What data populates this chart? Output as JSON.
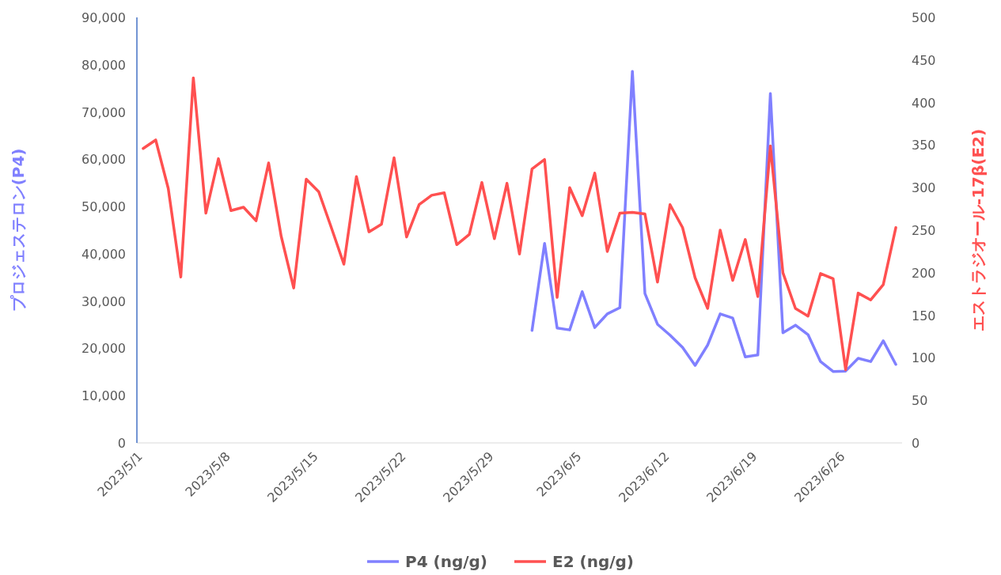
{
  "chart_data": {
    "type": "line",
    "ylabel": "プロジェステロン(P4)",
    "y2label": "エストラジオール-17β(E2)",
    "legend": "bottom",
    "x": [
      "2023-05-01",
      "2023-05-02",
      "2023-05-03",
      "2023-05-04",
      "2023-05-05",
      "2023-05-06",
      "2023-05-07",
      "2023-05-08",
      "2023-05-09",
      "2023-05-10",
      "2023-05-11",
      "2023-05-12",
      "2023-05-13",
      "2023-05-14",
      "2023-05-15",
      "2023-05-16",
      "2023-05-17",
      "2023-05-18",
      "2023-05-19",
      "2023-05-20",
      "2023-05-21",
      "2023-05-22",
      "2023-05-23",
      "2023-05-24",
      "2023-05-25",
      "2023-05-26",
      "2023-05-27",
      "2023-05-28",
      "2023-05-29",
      "2023-05-30",
      "2023-05-31",
      "2023-06-01",
      "2023-06-02",
      "2023-06-03",
      "2023-06-04",
      "2023-06-05",
      "2023-06-06",
      "2023-06-07",
      "2023-06-08",
      "2023-06-09",
      "2023-06-10",
      "2023-06-11",
      "2023-06-12",
      "2023-06-13",
      "2023-06-14",
      "2023-06-15",
      "2023-06-16",
      "2023-06-17",
      "2023-06-18",
      "2023-06-19",
      "2023-06-20",
      "2023-06-21",
      "2023-06-22",
      "2023-06-23",
      "2023-06-24",
      "2023-06-25",
      "2023-06-26",
      "2023-06-27",
      "2023-06-28",
      "2023-06-29",
      "2023-06-30"
    ],
    "xlim": [
      "2023-04-30T12:00",
      "2023-06-30T12:00"
    ],
    "xticks": [
      {
        "value": "2023-05-01",
        "label": "2023/5/1"
      },
      {
        "value": "2023-05-08",
        "label": "2023/5/8"
      },
      {
        "value": "2023-05-15",
        "label": "2023/5/15"
      },
      {
        "value": "2023-05-22",
        "label": "2023/5/22"
      },
      {
        "value": "2023-05-29",
        "label": "2023/5/29"
      },
      {
        "value": "2023-06-05",
        "label": "2023/6/5"
      },
      {
        "value": "2023-06-12",
        "label": "2023/6/12"
      },
      {
        "value": "2023-06-19",
        "label": "2023/6/19"
      },
      {
        "value": "2023-06-26",
        "label": "2023/6/26"
      }
    ],
    "ylim": [
      0,
      90000
    ],
    "yticks": [
      0,
      {
        "value": 10000,
        "label": "10,000"
      },
      {
        "value": 20000,
        "label": "20,000"
      },
      {
        "value": 30000,
        "label": "30,000"
      },
      {
        "value": 40000,
        "label": "40,000"
      },
      {
        "value": 50000,
        "label": "50,000"
      },
      {
        "value": 60000,
        "label": "60,000"
      },
      {
        "value": 70000,
        "label": "70,000"
      },
      {
        "value": 80000,
        "label": "80,000"
      },
      {
        "value": 90000,
        "label": "90,000"
      }
    ],
    "y2lim": [
      0,
      500
    ],
    "y2ticks": [
      0,
      50,
      100,
      150,
      200,
      250,
      300,
      350,
      400,
      450,
      500
    ],
    "series": [
      {
        "name": "P4 (ng/g)",
        "color": "#8080ff",
        "axis": "y",
        "values": [
          null,
          null,
          null,
          null,
          null,
          null,
          null,
          null,
          null,
          null,
          null,
          null,
          null,
          null,
          null,
          null,
          null,
          null,
          null,
          null,
          null,
          null,
          null,
          null,
          null,
          null,
          null,
          null,
          null,
          null,
          null,
          23800,
          42200,
          24300,
          23900,
          32000,
          24400,
          27300,
          28600,
          78600,
          31600,
          25100,
          22800,
          20200,
          16400,
          20700,
          27300,
          26400,
          18200,
          18600,
          73900,
          23300,
          24900,
          22900,
          17200,
          15100,
          15200,
          17900,
          17200,
          21600,
          16600
        ]
      },
      {
        "name": "E2 (ng/g)",
        "color": "#ff5050",
        "axis": "y2",
        "values": [
          346,
          356,
          299,
          195,
          429,
          270,
          334,
          273,
          277,
          261,
          329,
          243,
          182,
          310,
          295,
          253,
          210,
          313,
          248,
          257,
          335,
          242,
          280,
          291,
          294,
          233,
          245,
          306,
          240,
          305,
          222,
          322,
          333,
          171,
          300,
          267,
          317,
          225,
          270,
          271,
          269,
          189,
          280,
          253,
          194,
          158,
          250,
          191,
          239,
          172,
          349,
          200,
          158,
          149,
          199,
          193,
          86,
          176,
          168,
          186,
          253
        ]
      }
    ]
  }
}
